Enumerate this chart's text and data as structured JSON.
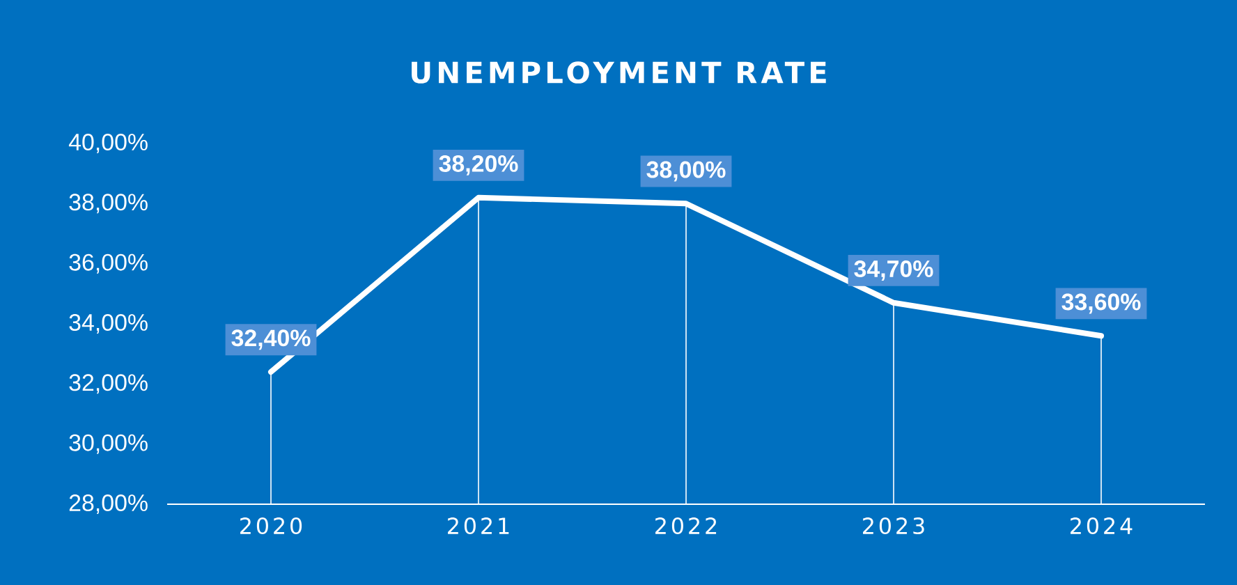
{
  "chart_data": {
    "type": "line",
    "title": "UNEMPLOYMENT RATE",
    "categories": [
      "2020",
      "2021",
      "2022",
      "2023",
      "2024"
    ],
    "series": [
      {
        "color": "#ffffff",
        "values": [
          32.4,
          38.2,
          38.0,
          34.7,
          33.6
        ],
        "value_labels": [
          "32,40%",
          "38,20%",
          "38,00%",
          "34,70%",
          "33,60%"
        ]
      }
    ],
    "ylim": [
      28,
      40
    ],
    "yticks": [
      {
        "value": 28,
        "label": "28,00%"
      },
      {
        "value": 30,
        "label": "30,00%"
      },
      {
        "value": 32,
        "label": "32,00%"
      },
      {
        "value": 34,
        "label": "34,00%"
      },
      {
        "value": 36,
        "label": "36,00%"
      },
      {
        "value": 38,
        "label": "38,00%"
      },
      {
        "value": 40,
        "label": "40,00%"
      }
    ]
  }
}
